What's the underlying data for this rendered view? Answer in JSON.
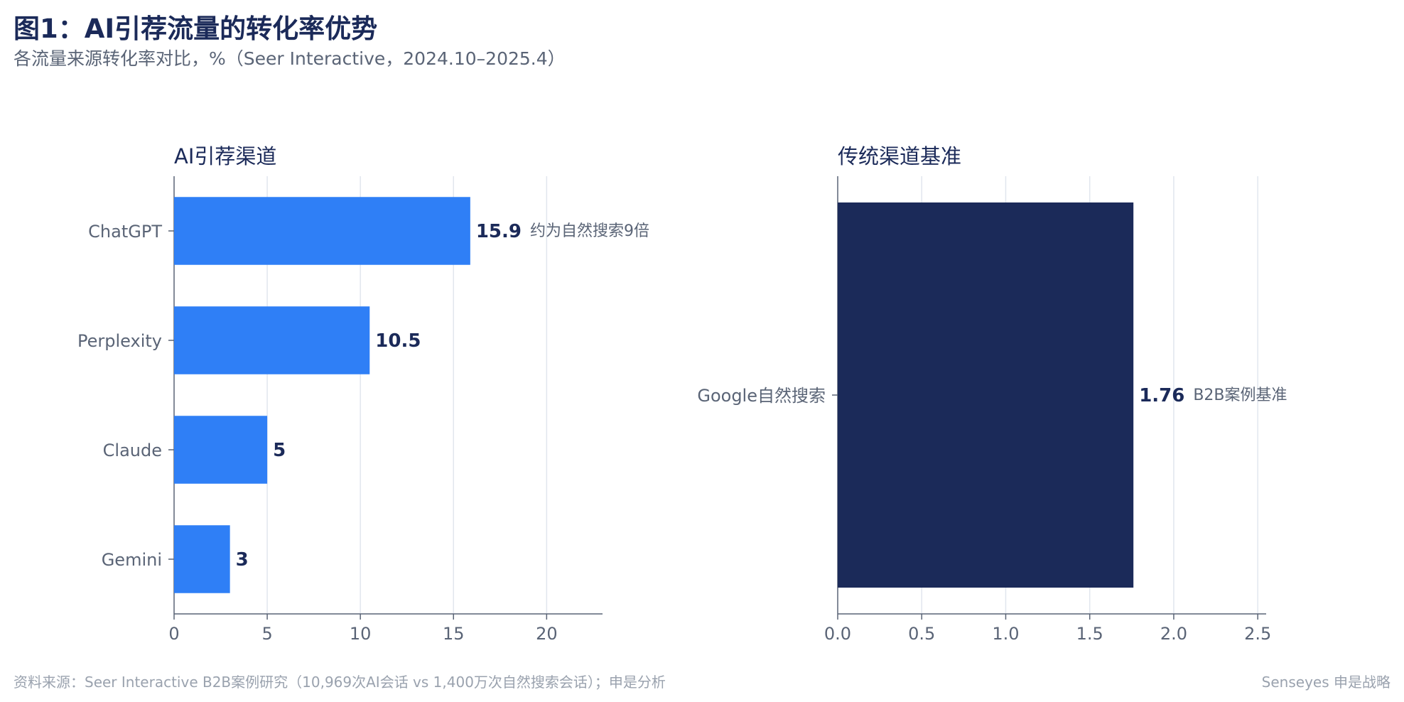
{
  "header": {
    "title": "图1：AI引荐流量的转化率优势",
    "subtitle": "各流量来源转化率对比，%（Seer Interactive，2024.10–2025.4）"
  },
  "footer": {
    "source": "资料来源：Seer Interactive B2B案例研究（10,969次AI会话 vs 1,400万次自然搜索会话）；申是分析",
    "brand": "Senseyes 申是战略"
  },
  "colors": {
    "ai_bar": "#2f7ff6",
    "traditional_bar": "#1b2a59",
    "value_label": "#1b2a59",
    "annotation": "#5a6476",
    "axis": "#5a6476",
    "grid": "#e1e6ee"
  },
  "chart_data": [
    {
      "type": "bar",
      "orientation": "horizontal",
      "title": "AI引荐渠道",
      "categories": [
        "ChatGPT",
        "Perplexity",
        "Claude",
        "Gemini"
      ],
      "values": [
        15.9,
        10.5,
        5,
        3
      ],
      "value_labels": [
        "15.9",
        "10.5",
        "5",
        "3"
      ],
      "annotations": [
        "约为自然搜索9倍",
        "",
        "",
        ""
      ],
      "xlim": [
        0,
        23
      ],
      "xticks": [
        0,
        5,
        10,
        15,
        20
      ],
      "xtick_labels": [
        "0",
        "5",
        "10",
        "15",
        "20"
      ],
      "grid": true,
      "color": "#2f7ff6"
    },
    {
      "type": "bar",
      "orientation": "horizontal",
      "title": "传统渠道基准",
      "categories": [
        "Google自然搜索"
      ],
      "values": [
        1.76
      ],
      "value_labels": [
        "1.76"
      ],
      "annotations": [
        "B2B案例基准"
      ],
      "xlim": [
        0,
        2.55
      ],
      "xticks": [
        0,
        0.5,
        1.0,
        1.5,
        2.0,
        2.5
      ],
      "xtick_labels": [
        "0.0",
        "0.5",
        "1.0",
        "1.5",
        "2.0",
        "2.5"
      ],
      "grid": true,
      "color": "#1b2a59"
    }
  ]
}
